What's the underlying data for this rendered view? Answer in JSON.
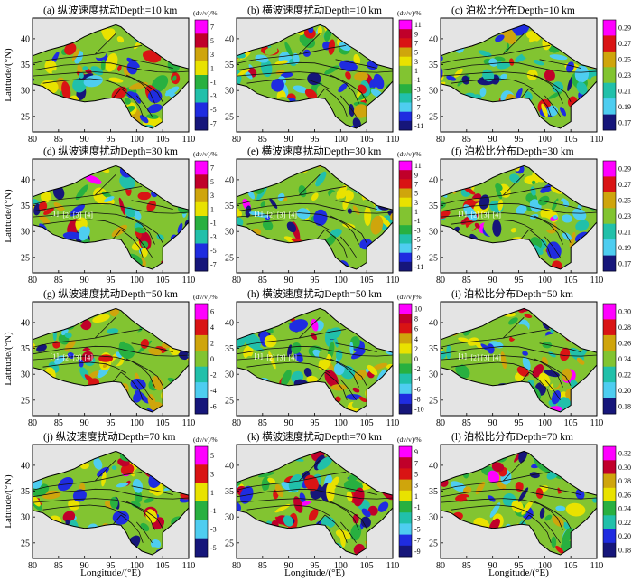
{
  "figure": {
    "axis_labels": {
      "x": "Longitude/(°E)",
      "y": "Latitude/(°N)"
    },
    "colors": {
      "plot_background": "#e4e4e4",
      "fault_line": "#111111",
      "block_boundary": "#000000",
      "palette": [
        "#ff00ff",
        "#c0002a",
        "#d91414",
        "#cfa50c",
        "#e9e200",
        "#82c431",
        "#28b040",
        "#21c0aa",
        "#4ecdf0",
        "#1f2ce0",
        "#16167a"
      ]
    }
  },
  "chart_data": [
    {
      "id": "a",
      "type": "heatmap",
      "title": "(a) 纵波速度扰动Depth=10 km",
      "variable": "P-wave velocity perturbation",
      "depth_km": 10,
      "unit": "(dv/v)/%",
      "colorbar_ticks": [
        "7",
        "5",
        "3",
        "1",
        "-1",
        "-3",
        "-5",
        "-7"
      ],
      "xlim": [
        80,
        110
      ],
      "ylim": [
        22,
        44
      ],
      "xticks": [
        "80",
        "85",
        "90",
        "95",
        "100",
        "105",
        "110"
      ],
      "yticks": [
        "25",
        "30",
        "35",
        "40"
      ],
      "annotations": []
    },
    {
      "id": "b",
      "type": "heatmap",
      "title": "(b) 横波速度扰动Depth=10 km",
      "variable": "S-wave velocity perturbation",
      "depth_km": 10,
      "unit": "(dv/v)/%",
      "colorbar_ticks": [
        "11",
        "9",
        "7",
        "5",
        "3",
        "1",
        "-1",
        "-3",
        "-5",
        "-7",
        "-9",
        "-11"
      ],
      "xlim": [
        80,
        110
      ],
      "ylim": [
        22,
        44
      ],
      "xticks": [
        "80",
        "85",
        "90",
        "95",
        "100",
        "105",
        "110"
      ],
      "yticks": [
        "25",
        "30",
        "35",
        "40"
      ],
      "annotations": []
    },
    {
      "id": "c",
      "type": "heatmap",
      "title": "(c) 泊松比分布Depth=10 km",
      "variable": "Poisson's ratio",
      "depth_km": 10,
      "unit": "",
      "colorbar_ticks": [
        "0.29",
        "0.27",
        "0.25",
        "0.23",
        "0.21",
        "0.19",
        "0.17"
      ],
      "xlim": [
        80,
        110
      ],
      "ylim": [
        22,
        44
      ],
      "xticks": [
        "80",
        "85",
        "90",
        "95",
        "100",
        "105",
        "110"
      ],
      "yticks": [
        "25",
        "30",
        "35",
        "40"
      ],
      "annotations": []
    },
    {
      "id": "d",
      "type": "heatmap",
      "title": "(d) 纵波速度扰动Depth=30 km",
      "variable": "P-wave velocity perturbation",
      "depth_km": 30,
      "unit": "(dv/v)/%",
      "colorbar_ticks": [
        "7",
        "5",
        "3",
        "1",
        "-1",
        "-3",
        "-5",
        "-7"
      ],
      "xlim": [
        80,
        110
      ],
      "ylim": [
        22,
        44
      ],
      "xticks": [
        "80",
        "85",
        "90",
        "95",
        "100",
        "105",
        "110"
      ],
      "yticks": [
        "25",
        "30",
        "35",
        "40"
      ],
      "annotations": [
        {
          "label": "[1]",
          "lon": 84.2,
          "lat": 33.0
        },
        {
          "label": "[2]",
          "lon": 86.6,
          "lat": 32.7
        },
        {
          "label": "[3]",
          "lon": 88.6,
          "lat": 32.7
        },
        {
          "label": "[4]",
          "lon": 90.8,
          "lat": 32.7
        }
      ]
    },
    {
      "id": "e",
      "type": "heatmap",
      "title": "(e) 横波速度扰动Depth=30 km",
      "variable": "S-wave velocity perturbation",
      "depth_km": 30,
      "unit": "(dv/v)/%",
      "colorbar_ticks": [
        "11",
        "9",
        "7",
        "5",
        "3",
        "1",
        "-1",
        "-3",
        "-5",
        "-7",
        "-9",
        "-11"
      ],
      "xlim": [
        80,
        110
      ],
      "ylim": [
        22,
        44
      ],
      "xticks": [
        "80",
        "85",
        "90",
        "95",
        "100",
        "105",
        "110"
      ],
      "yticks": [
        "25",
        "30",
        "35",
        "40"
      ],
      "annotations": [
        {
          "label": "[1]",
          "lon": 84.2,
          "lat": 33.0
        },
        {
          "label": "[2]",
          "lon": 86.6,
          "lat": 32.7
        },
        {
          "label": "[3]",
          "lon": 88.6,
          "lat": 32.7
        },
        {
          "label": "[4]",
          "lon": 90.8,
          "lat": 32.7
        }
      ]
    },
    {
      "id": "f",
      "type": "heatmap",
      "title": "(f) 泊松比分布Depth=30 km",
      "variable": "Poisson's ratio",
      "depth_km": 30,
      "unit": "",
      "colorbar_ticks": [
        "0.29",
        "0.27",
        "0.25",
        "0.23",
        "0.21",
        "0.19",
        "0.17"
      ],
      "xlim": [
        80,
        110
      ],
      "ylim": [
        22,
        44
      ],
      "xticks": [
        "80",
        "85",
        "90",
        "95",
        "100",
        "105",
        "110"
      ],
      "yticks": [
        "25",
        "30",
        "35",
        "40"
      ],
      "annotations": [
        {
          "label": "[1]",
          "lon": 84.2,
          "lat": 33.0
        },
        {
          "label": "[2]",
          "lon": 86.6,
          "lat": 32.7
        },
        {
          "label": "[3]",
          "lon": 88.6,
          "lat": 32.7
        },
        {
          "label": "[4]",
          "lon": 90.8,
          "lat": 32.7
        }
      ]
    },
    {
      "id": "g",
      "type": "heatmap",
      "title": "(g) 纵波速度扰动Depth=50 km",
      "variable": "P-wave velocity perturbation",
      "depth_km": 50,
      "unit": "(dv/v)/%",
      "colorbar_ticks": [
        "6",
        "4",
        "2",
        "0",
        "-2",
        "-4",
        "-6"
      ],
      "xlim": [
        80,
        110
      ],
      "ylim": [
        22,
        44
      ],
      "xticks": [
        "80",
        "85",
        "90",
        "95",
        "100",
        "105",
        "110"
      ],
      "yticks": [
        "25",
        "30",
        "35",
        "40"
      ],
      "annotations": [
        {
          "label": "[1]",
          "lon": 84.2,
          "lat": 33.0
        },
        {
          "label": "[2]",
          "lon": 86.6,
          "lat": 32.7
        },
        {
          "label": "[3]",
          "lon": 88.6,
          "lat": 32.7
        },
        {
          "label": "[4]",
          "lon": 90.8,
          "lat": 32.7
        }
      ]
    },
    {
      "id": "h",
      "type": "heatmap",
      "title": "(h) 横波速度扰动Depth=50 km",
      "variable": "S-wave velocity perturbation",
      "depth_km": 50,
      "unit": "(dv/v)/%",
      "colorbar_ticks": [
        "10",
        "8",
        "6",
        "4",
        "2",
        "0",
        "-2",
        "-4",
        "-6",
        "-8",
        "-10"
      ],
      "xlim": [
        80,
        110
      ],
      "ylim": [
        22,
        44
      ],
      "xticks": [
        "80",
        "85",
        "90",
        "95",
        "100",
        "105",
        "110"
      ],
      "yticks": [
        "25",
        "30",
        "35",
        "40"
      ],
      "annotations": [
        {
          "label": "[1]",
          "lon": 84.2,
          "lat": 33.0
        },
        {
          "label": "[2]",
          "lon": 86.6,
          "lat": 32.7
        },
        {
          "label": "[3]",
          "lon": 88.6,
          "lat": 32.7
        },
        {
          "label": "[4]",
          "lon": 90.8,
          "lat": 32.7
        }
      ]
    },
    {
      "id": "i",
      "type": "heatmap",
      "title": "(i) 泊松比分布Depth=50 km",
      "variable": "Poisson's ratio",
      "depth_km": 50,
      "unit": "",
      "colorbar_ticks": [
        "0.30",
        "0.28",
        "0.26",
        "0.24",
        "0.22",
        "0.20",
        "0.18"
      ],
      "xlim": [
        80,
        110
      ],
      "ylim": [
        22,
        44
      ],
      "xticks": [
        "80",
        "85",
        "90",
        "95",
        "100",
        "105",
        "110"
      ],
      "yticks": [
        "25",
        "30",
        "35",
        "40"
      ],
      "annotations": [
        {
          "label": "[1]",
          "lon": 84.2,
          "lat": 33.0
        },
        {
          "label": "[2]",
          "lon": 86.6,
          "lat": 32.7
        },
        {
          "label": "[3]",
          "lon": 88.6,
          "lat": 32.7
        },
        {
          "label": "[4]",
          "lon": 90.8,
          "lat": 32.7
        }
      ]
    },
    {
      "id": "j",
      "type": "heatmap",
      "title": "(j) 纵波速度扰动Depth=70 km",
      "variable": "P-wave velocity perturbation",
      "depth_km": 70,
      "unit": "(dv/v)/%",
      "colorbar_ticks": [
        "5",
        "3",
        "1",
        "-1",
        "-3",
        "-5"
      ],
      "xlim": [
        80,
        110
      ],
      "ylim": [
        22,
        44
      ],
      "xticks": [
        "80",
        "85",
        "90",
        "95",
        "100",
        "105",
        "110"
      ],
      "yticks": [
        "25",
        "30",
        "35",
        "40"
      ],
      "annotations": []
    },
    {
      "id": "k",
      "type": "heatmap",
      "title": "(k) 横波速度扰动Depth=70 km",
      "variable": "S-wave velocity perturbation",
      "depth_km": 70,
      "unit": "(dv/v)/%",
      "colorbar_ticks": [
        "9",
        "7",
        "5",
        "3",
        "1",
        "-1",
        "-3",
        "-5",
        "-7",
        "-9"
      ],
      "xlim": [
        80,
        110
      ],
      "ylim": [
        22,
        44
      ],
      "xticks": [
        "80",
        "85",
        "90",
        "95",
        "100",
        "105",
        "110"
      ],
      "yticks": [
        "25",
        "30",
        "35",
        "40"
      ],
      "annotations": []
    },
    {
      "id": "l",
      "type": "heatmap",
      "title": "(l) 泊松比分布Depth=70 km",
      "variable": "Poisson's ratio",
      "depth_km": 70,
      "unit": "",
      "colorbar_ticks": [
        "0.32",
        "0.30",
        "0.28",
        "0.26",
        "0.24",
        "0.22",
        "0.20",
        "0.18"
      ],
      "xlim": [
        80,
        110
      ],
      "ylim": [
        22,
        44
      ],
      "xticks": [
        "80",
        "85",
        "90",
        "95",
        "100",
        "105",
        "110"
      ],
      "yticks": [
        "25",
        "30",
        "35",
        "40"
      ],
      "annotations": []
    }
  ]
}
